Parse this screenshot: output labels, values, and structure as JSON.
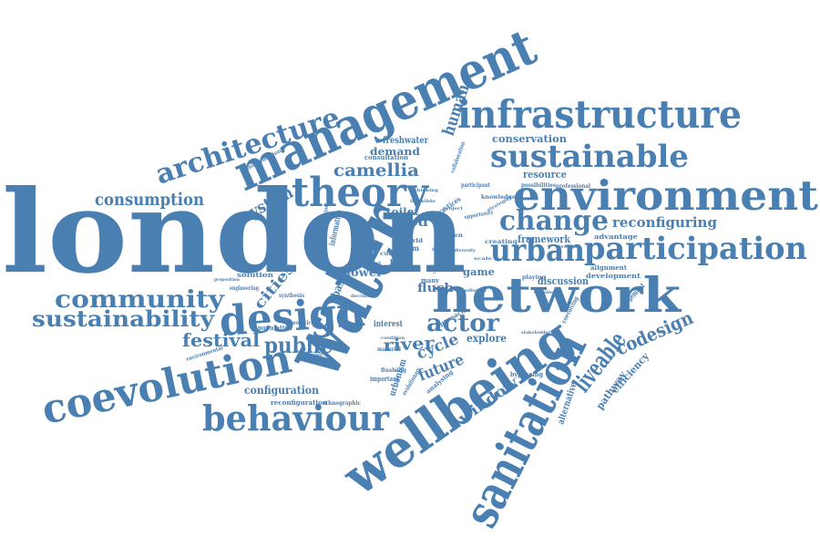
{
  "colors": {
    "word": "#4a7fb2",
    "background": "#ffffff"
  },
  "words": [
    "london",
    "water",
    "wellbeing",
    "management",
    "network",
    "sanitation",
    "environment",
    "infrastructure",
    "theory",
    "design",
    "coevolution",
    "behaviour",
    "sustainable",
    "participation",
    "urban",
    "architecture",
    "change",
    "community",
    "sustainability",
    "camellia",
    "consumption",
    "public",
    "festival",
    "actor",
    "liveable",
    "codesign",
    "human",
    "system",
    "reconfiguring",
    "cities",
    "river",
    "cycle",
    "future",
    "window",
    "configuration",
    "explore",
    "pathway",
    "efficiency",
    "alternative",
    "framework",
    "discussion",
    "conservation",
    "freshwater",
    "demand",
    "resource",
    "food",
    "toilet",
    "game",
    "flush",
    "lower",
    "solution",
    "basin",
    "hydro",
    "urbanism",
    "evolutionary",
    "engagement",
    "development",
    "advantage",
    "alignment",
    "knowledge",
    "creating",
    "possibilities",
    "professional",
    "participant",
    "consultation",
    "transformation",
    "information",
    "interest",
    "approach",
    "coevolving",
    "bypassing",
    "population",
    "reconfiguration",
    "ethnographic",
    "environmental",
    "analysing",
    "important",
    "playing",
    "productivity",
    "engineering",
    "proposition",
    "flushing",
    "type",
    "form",
    "loo",
    "many",
    "citizen",
    "current",
    "world",
    "material",
    "theoretical",
    "synthesis",
    "precipitation",
    "opportunity",
    "collaboration",
    "practices",
    "invisible",
    "strategies",
    "biodiversity",
    "supplies",
    "decision",
    "pollution",
    "condition",
    "thinking",
    "scale",
    "model",
    "project",
    "growth",
    "balance",
    "stakeholder"
  ]
}
